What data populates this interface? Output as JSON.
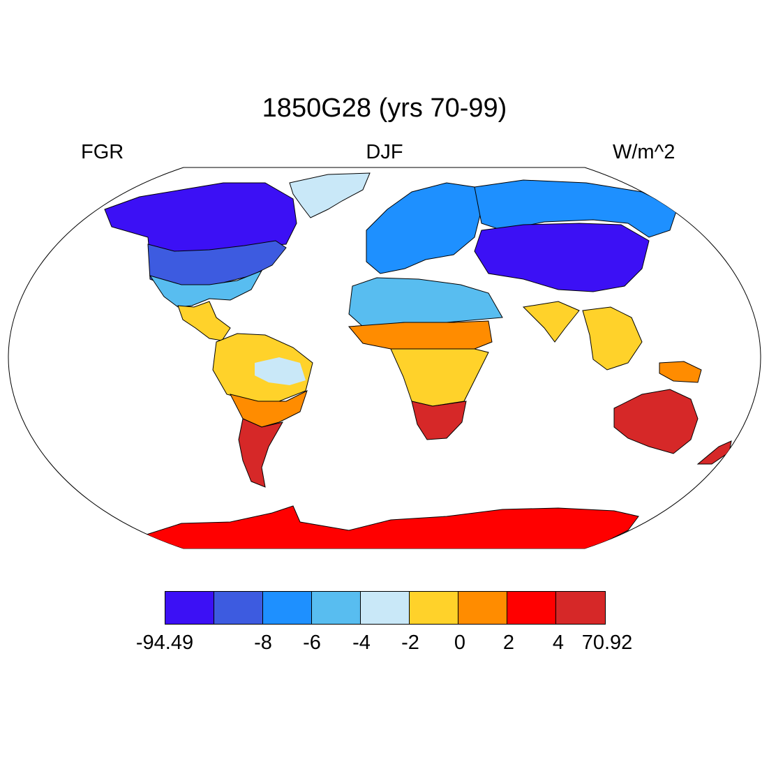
{
  "header": {
    "title": "1850G28 (yrs 70-99)",
    "left_label": "FGR",
    "center_label": "DJF",
    "right_label": "W/m^2"
  },
  "map": {
    "projection": "Robinson",
    "ocean_color": "#ffffff",
    "coastline_color": "#000000",
    "region_colors": {
      "north_america_north": "#3c10f5",
      "north_america_mid": "#3d5be0",
      "north_america_south": "#58bdf0",
      "greenland": "#c9e8f8",
      "central_america": "#ffd22a",
      "amazon_core": "#c9e8f8",
      "south_america_north": "#ffd22a",
      "south_america_mid": "#ff8c00",
      "south_america_south": "#d62828",
      "europe": "#1e90ff",
      "north_africa": "#58bdf0",
      "sahel": "#ff8c00",
      "central_africa": "#ffd22a",
      "southern_africa": "#d62828",
      "siberia": "#1e90ff",
      "central_asia": "#3c10f5",
      "south_asia": "#ffd22a",
      "southeast_asia": "#ffd22a",
      "new_guinea": "#ff8c00",
      "australia": "#d62828",
      "new_zealand": "#d62828",
      "antarctica": "#ff0000"
    }
  },
  "colorbar": {
    "colors": [
      "#3c10f5",
      "#3d5be0",
      "#1e90ff",
      "#58bdf0",
      "#c9e8f8",
      "#ffd22a",
      "#ff8c00",
      "#ff0000",
      "#d62828"
    ],
    "tick_labels": [
      "-94.49",
      "-8",
      "-6",
      "-4",
      "-2",
      "0",
      "2",
      "4",
      "70.92"
    ]
  }
}
